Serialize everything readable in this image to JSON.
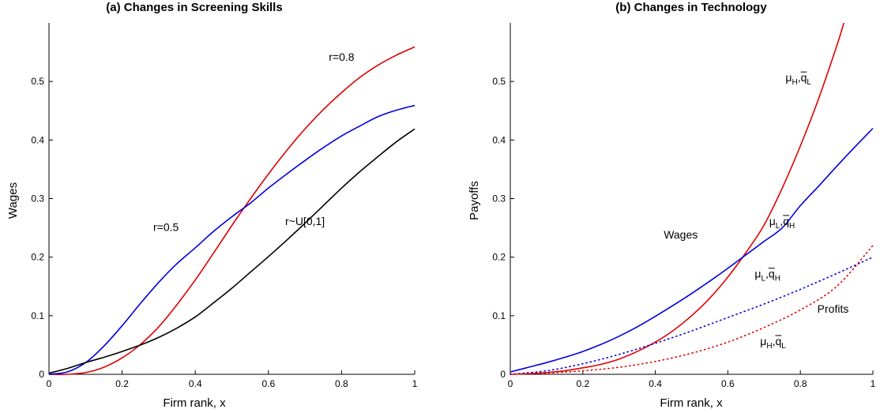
{
  "chart_data": [
    {
      "type": "line",
      "title": "(a) Changes in Screening Skills",
      "xlabel": "Firm rank, x",
      "ylabel": "Wages",
      "xlim": [
        0,
        1
      ],
      "ylim": [
        0,
        0.6
      ],
      "xticks": [
        "0",
        "0.2",
        "0.4",
        "0.6",
        "0.8",
        "1"
      ],
      "yticks": [
        "0",
        "0.1",
        "0.2",
        "0.3",
        "0.4",
        "0.5"
      ],
      "grid": false,
      "series": [
        {
          "name": "r=0.8",
          "color": "#e00000",
          "style": "solid",
          "x": [
            0,
            0.05,
            0.1,
            0.15,
            0.2,
            0.25,
            0.3,
            0.35,
            0.4,
            0.45,
            0.5,
            0.55,
            0.6,
            0.65,
            0.7,
            0.75,
            0.8,
            0.85,
            0.9,
            0.95,
            1.0
          ],
          "y": [
            0,
            0.0,
            0.003,
            0.012,
            0.028,
            0.051,
            0.081,
            0.119,
            0.161,
            0.207,
            0.254,
            0.299,
            0.342,
            0.382,
            0.419,
            0.452,
            0.481,
            0.507,
            0.528,
            0.545,
            0.559
          ]
        },
        {
          "name": "r=0.5",
          "color": "#0000e0",
          "style": "solid",
          "x": [
            0,
            0.05,
            0.1,
            0.15,
            0.2,
            0.25,
            0.3,
            0.35,
            0.4,
            0.45,
            0.5,
            0.55,
            0.6,
            0.65,
            0.7,
            0.75,
            0.8,
            0.85,
            0.9,
            0.95,
            1.0
          ],
          "y": [
            0,
            0.004,
            0.02,
            0.048,
            0.083,
            0.121,
            0.157,
            0.189,
            0.216,
            0.244,
            0.269,
            0.292,
            0.318,
            0.342,
            0.365,
            0.387,
            0.407,
            0.424,
            0.44,
            0.451,
            0.459
          ]
        },
        {
          "name": "r~U[0,1]",
          "color": "#000000",
          "style": "solid",
          "x": [
            0,
            0.05,
            0.1,
            0.15,
            0.2,
            0.25,
            0.3,
            0.35,
            0.4,
            0.45,
            0.5,
            0.55,
            0.6,
            0.65,
            0.7,
            0.75,
            0.8,
            0.85,
            0.9,
            0.95,
            1.0
          ],
          "y": [
            0.002,
            0.01,
            0.02,
            0.029,
            0.039,
            0.05,
            0.063,
            0.079,
            0.098,
            0.122,
            0.147,
            0.174,
            0.201,
            0.229,
            0.258,
            0.288,
            0.318,
            0.346,
            0.372,
            0.397,
            0.419
          ]
        }
      ],
      "annotations": [
        {
          "text": "r=0.8",
          "x": 0.8,
          "y": 0.535
        },
        {
          "text": "r=0.5",
          "x": 0.32,
          "y": 0.245
        },
        {
          "text": "r~U[0,1]",
          "x": 0.7,
          "y": 0.255
        }
      ]
    },
    {
      "type": "line",
      "title": "(b) Changes in Technology",
      "xlabel": "Firm rank, x",
      "ylabel": "Payoffs",
      "xlim": [
        0,
        1
      ],
      "ylim": [
        0,
        0.6
      ],
      "xticks": [
        "0",
        "0.2",
        "0.4",
        "0.6",
        "0.8",
        "1"
      ],
      "yticks": [
        "0",
        "0.1",
        "0.2",
        "0.3",
        "0.4",
        "0.5"
      ],
      "grid": false,
      "series": [
        {
          "color": "#e00000",
          "style": "solid",
          "x": [
            0,
            0.05,
            0.1,
            0.15,
            0.2,
            0.25,
            0.3,
            0.35,
            0.4,
            0.45,
            0.5,
            0.55,
            0.6,
            0.65,
            0.7,
            0.75,
            0.8,
            0.85,
            0.9,
            0.92
          ],
          "y": [
            0,
            0.001,
            0.003,
            0.006,
            0.011,
            0.017,
            0.026,
            0.039,
            0.055,
            0.075,
            0.1,
            0.13,
            0.166,
            0.208,
            0.255,
            0.318,
            0.39,
            0.47,
            0.56,
            0.6
          ]
        },
        {
          "color": "#0000e0",
          "style": "solid",
          "x": [
            0,
            0.05,
            0.1,
            0.15,
            0.2,
            0.25,
            0.3,
            0.35,
            0.4,
            0.45,
            0.5,
            0.55,
            0.6,
            0.65,
            0.7,
            0.75,
            0.8,
            0.85,
            0.9,
            0.95,
            1.0
          ],
          "y": [
            0.004,
            0.012,
            0.02,
            0.029,
            0.039,
            0.051,
            0.065,
            0.081,
            0.099,
            0.118,
            0.138,
            0.159,
            0.181,
            0.204,
            0.227,
            0.25,
            0.288,
            0.321,
            0.355,
            0.388,
            0.42
          ]
        },
        {
          "color": "#0000e0",
          "style": "dotted",
          "x": [
            0,
            0.1,
            0.2,
            0.3,
            0.4,
            0.5,
            0.6,
            0.7,
            0.8,
            0.9,
            1.0
          ],
          "y": [
            0,
            0.006,
            0.018,
            0.034,
            0.053,
            0.074,
            0.097,
            0.12,
            0.145,
            0.172,
            0.2
          ]
        },
        {
          "color": "#e00000",
          "style": "dotted",
          "x": [
            0,
            0.1,
            0.2,
            0.3,
            0.4,
            0.5,
            0.6,
            0.7,
            0.8,
            0.9,
            1.0
          ],
          "y": [
            0,
            0.002,
            0.006,
            0.012,
            0.022,
            0.036,
            0.055,
            0.08,
            0.11,
            0.15,
            0.22
          ]
        }
      ],
      "annotations": [
        {
          "base": "μ",
          "sub1": "H",
          "sep": ",",
          "qbar": "q",
          "sub2": "L",
          "x": 0.82,
          "y": 0.5
        },
        {
          "base": "μ",
          "sub1": "L",
          "sep": ",",
          "qbar": "q",
          "sub2": "H",
          "x": 0.775,
          "y": 0.255
        },
        {
          "text": "Wages",
          "x": 0.47,
          "y": 0.232
        },
        {
          "base": "μ",
          "sub1": "L",
          "sep": ",",
          "qbar": "q",
          "sub2": "H",
          "x": 0.735,
          "y": 0.165
        },
        {
          "text": "Profits",
          "x": 0.89,
          "y": 0.105
        },
        {
          "base": "μ",
          "sub1": "H",
          "sep": ",",
          "qbar": "q",
          "sub2": "L",
          "x": 0.75,
          "y": 0.05
        }
      ]
    }
  ]
}
